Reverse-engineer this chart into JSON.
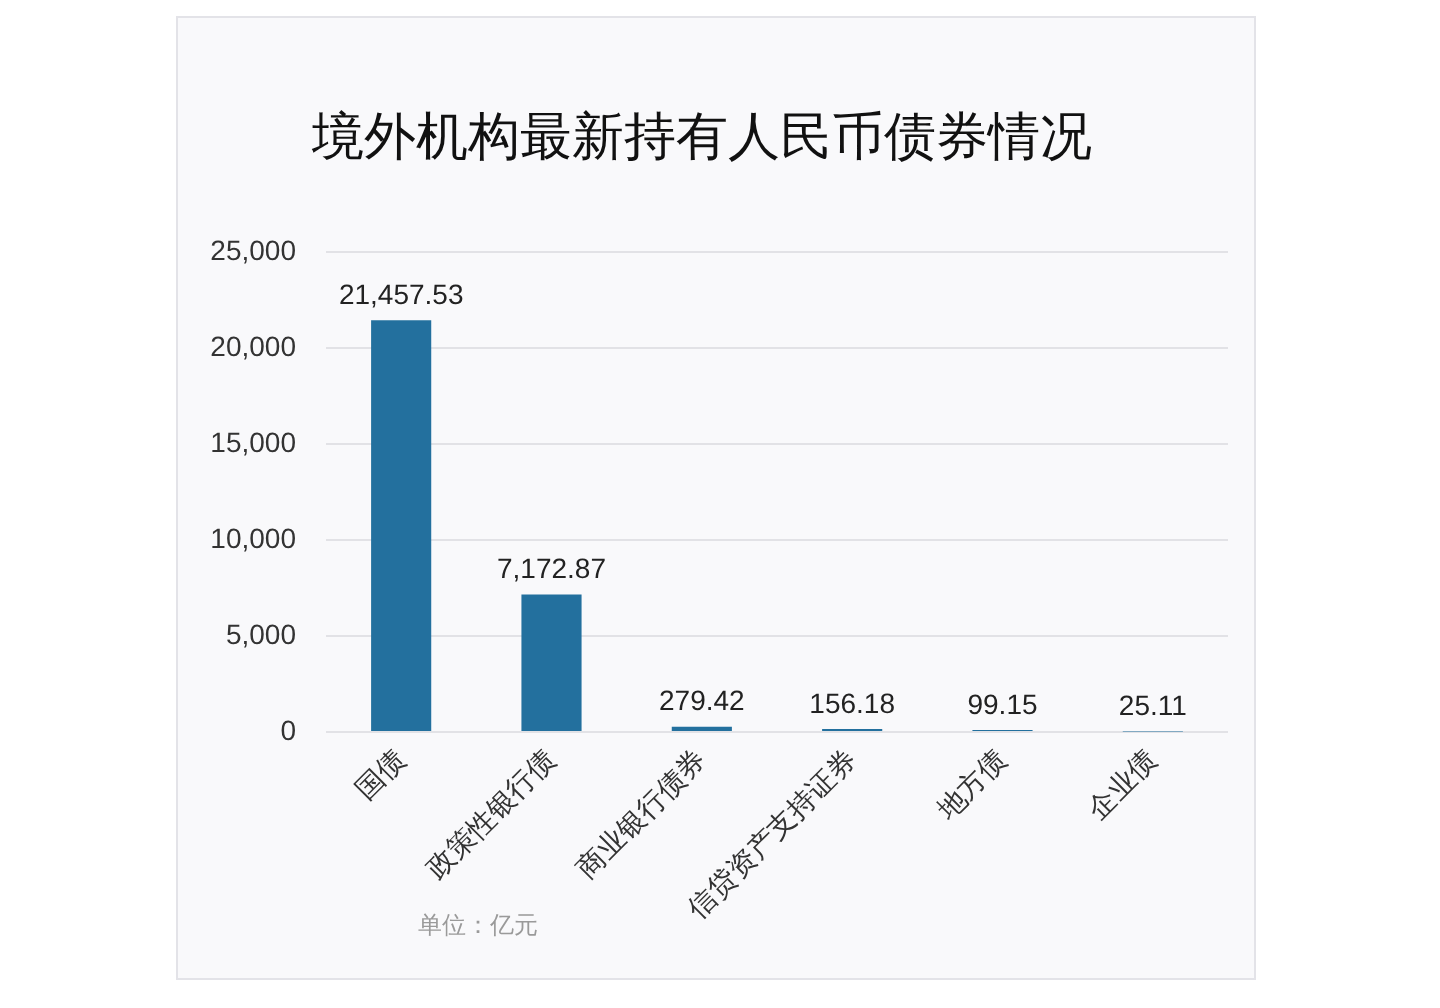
{
  "chart_data": {
    "type": "bar",
    "title": "境外机构最新持有人民币债券情况",
    "categories": [
      "国债",
      "政策性银行债",
      "商业银行债券",
      "信贷资产支持证券",
      "地方债",
      "企业债"
    ],
    "values": [
      21457.53,
      7172.87,
      279.42,
      156.18,
      99.15,
      25.11
    ],
    "value_labels": [
      "21,457.53",
      "7,172.87",
      "279.42",
      "156.18",
      "99.15",
      "25.11"
    ],
    "color": "#23709e",
    "ylim": [
      0,
      25000
    ],
    "yticks": [
      {
        "value": 0,
        "label": "0"
      },
      {
        "value": 5000,
        "label": "5,000"
      },
      {
        "value": 10000,
        "label": "10,000"
      },
      {
        "value": 15000,
        "label": "15,000"
      },
      {
        "value": 20000,
        "label": "20,000"
      },
      {
        "value": 25000,
        "label": "25,000"
      }
    ],
    "grid": "y",
    "annotations": [
      "单位：亿元"
    ]
  }
}
